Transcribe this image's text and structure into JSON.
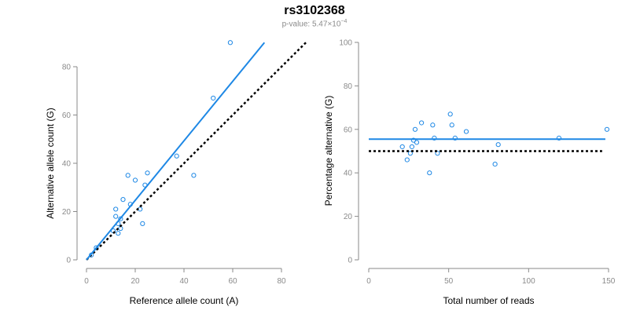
{
  "header": {
    "title": "rs3102368",
    "pvalue_label": "p-value: ",
    "pvalue_mantissa": "5.47",
    "pvalue_times": "×10",
    "pvalue_exponent": "−4"
  },
  "colors": {
    "points": "#1e88e5",
    "fit_line": "#1e88e5",
    "reference_line": "#000000",
    "axis": "#8a8a8a"
  },
  "chart_data": [
    {
      "type": "scatter",
      "title": "",
      "xlabel": "Reference allele count (A)",
      "ylabel": "Alternative allele count (G)",
      "xlim": [
        0,
        80
      ],
      "ylim": [
        0,
        80
      ],
      "xticks": [
        0,
        20,
        40,
        60,
        80
      ],
      "yticks": [
        0,
        20,
        40,
        60,
        80
      ],
      "grid": false,
      "points": {
        "x": [
          2,
          4,
          11,
          12,
          12,
          13,
          13,
          14,
          14,
          15,
          17,
          18,
          20,
          22,
          23,
          24,
          25,
          37,
          44,
          52,
          59
        ],
        "y": [
          2,
          5,
          12,
          21,
          18,
          15,
          11,
          13,
          17,
          25,
          35,
          23,
          33,
          21,
          15,
          31,
          36,
          43,
          35,
          67,
          90
        ]
      },
      "fit_line": {
        "x": [
          0,
          73
        ],
        "y": [
          0,
          90
        ]
      },
      "reference_line": {
        "x": [
          0,
          90
        ],
        "y": [
          0,
          90
        ],
        "style": "dotted"
      }
    },
    {
      "type": "scatter",
      "title": "",
      "xlabel": "Total number of reads",
      "ylabel": "Percentage alternative (G)",
      "xlim": [
        0,
        150
      ],
      "ylim": [
        0,
        100
      ],
      "xticks": [
        0,
        50,
        100,
        150
      ],
      "yticks": [
        0,
        20,
        40,
        60,
        80,
        100
      ],
      "grid": false,
      "points": {
        "x": [
          21,
          24,
          26,
          27,
          28,
          29,
          30,
          33,
          38,
          40,
          41,
          43,
          51,
          52,
          54,
          61,
          79,
          81,
          119,
          149
        ],
        "y": [
          52,
          46,
          49,
          52,
          55,
          60,
          54,
          63,
          40,
          62,
          56,
          49,
          67,
          62,
          56,
          59,
          44,
          53,
          56,
          60
        ]
      },
      "fit_line": {
        "x": [
          0,
          148
        ],
        "y": [
          55.5,
          55.5
        ]
      },
      "reference_line": {
        "x": [
          0,
          146
        ],
        "y": [
          50,
          50
        ],
        "style": "dotted"
      }
    }
  ]
}
